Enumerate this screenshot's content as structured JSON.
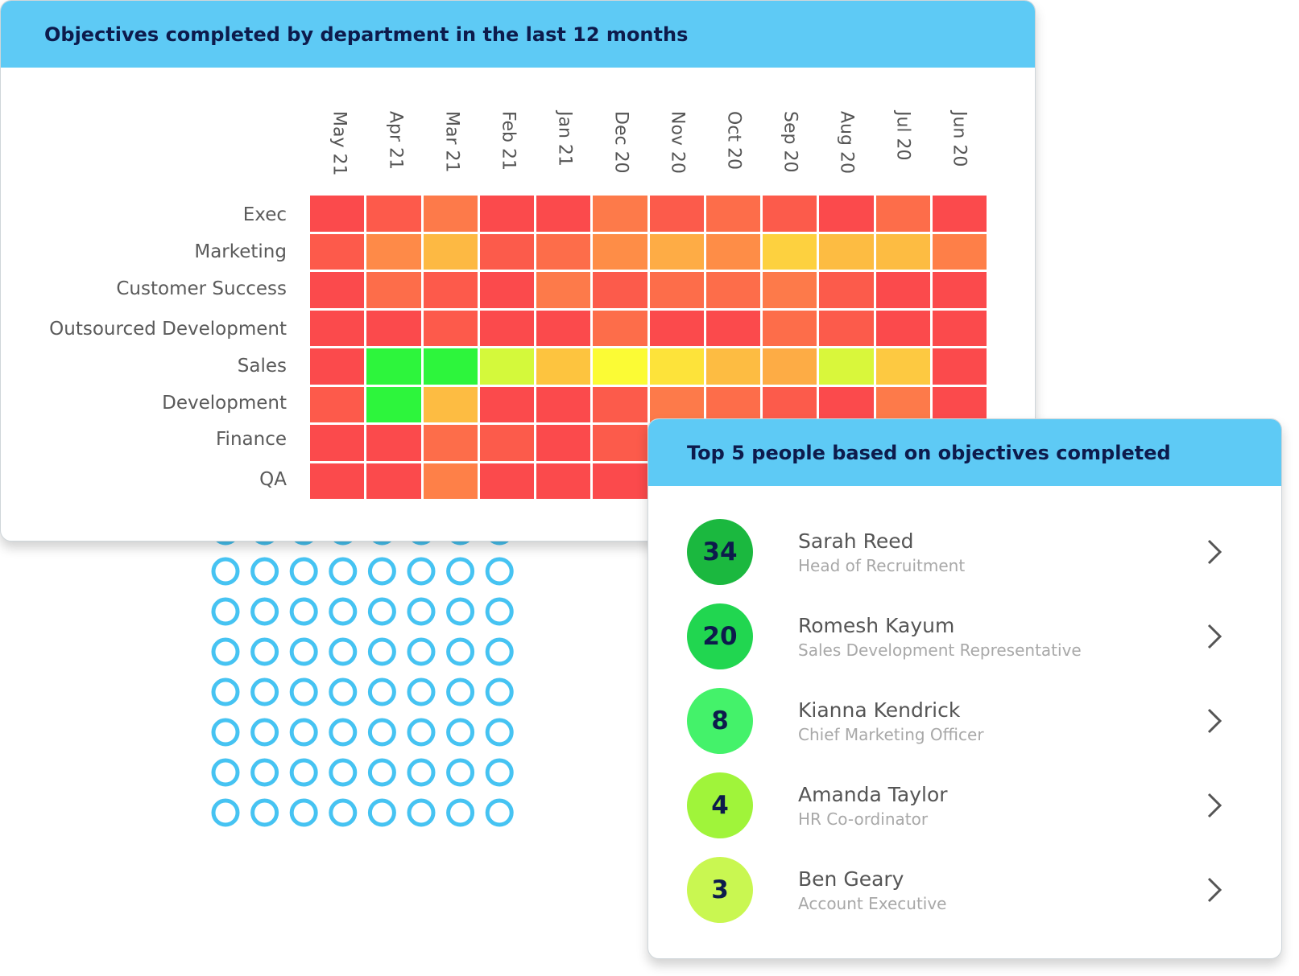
{
  "heatmap": {
    "title": "Objectives completed by department in the last 12 months",
    "months": [
      "May 21",
      "Apr 21",
      "Mar 21",
      "Feb 21",
      "Jan 21",
      "Dec 20",
      "Nov 20",
      "Oct 20",
      "Sep 20",
      "Aug 20",
      "Jul 20",
      "Jun 20"
    ],
    "departments": [
      "Exec",
      "Marketing",
      "Customer Success",
      "Outsourced Development",
      "Sales",
      "Development",
      "Finance",
      "QA"
    ],
    "cell_colors": [
      [
        "#fb4a4c",
        "#fd5a4b",
        "#fd7a4a",
        "#fb4a4c",
        "#fb4a4c",
        "#fd7a4a",
        "#fc5b4b",
        "#fd6d4a",
        "#fc5b4b",
        "#fb4a4c",
        "#fd6d4a",
        "#fb4a4c"
      ],
      [
        "#fd5a4b",
        "#fe8a48",
        "#fdb943",
        "#fc5b4b",
        "#fd6d4a",
        "#fe8d47",
        "#feac45",
        "#fe8d47",
        "#fdd13f",
        "#fdbc42",
        "#fdbc42",
        "#fe7f48"
      ],
      [
        "#fb4a4c",
        "#fd6d4a",
        "#fd5a4b",
        "#fb4a4c",
        "#fd7a4a",
        "#fc5b4b",
        "#fd6d4a",
        "#fd6d4a",
        "#fd7a4a",
        "#fc5b4b",
        "#fb4a4c",
        "#fb4a4c"
      ],
      [
        "#fb4a4c",
        "#fb4a4c",
        "#fd5a4b",
        "#fb4a4c",
        "#fb4a4c",
        "#fd6d4a",
        "#fb4a4c",
        "#fb4a4c",
        "#fd6d4a",
        "#fc5b4b",
        "#fb4a4c",
        "#fb4a4c"
      ],
      [
        "#fb4a4c",
        "#2df53c",
        "#2df53c",
        "#d4f93b",
        "#fdc43f",
        "#fbfb35",
        "#fde33a",
        "#fdbc42",
        "#fdac45",
        "#d9f73b",
        "#fdc941",
        "#fb4a4c"
      ],
      [
        "#fd5a4b",
        "#2df53c",
        "#fdbc42",
        "#fb4a4c",
        "#fb4a4c",
        "#fc5b4b",
        "#fd7a4a",
        "#fd6d4a",
        "#fc5b4b",
        "#fb4a4c",
        "#fd7a4a",
        "#fb4a4c"
      ],
      [
        "#fb4a4c",
        "#fb4a4c",
        "#fd6d4a",
        "#fc5b4b",
        "#fb4a4c",
        "#fc5b4b",
        "#fc5b4b",
        "#fc5b4b",
        "#fc5b4b",
        "#fc5b4b",
        "#fc5b4b",
        "#fc5b4b"
      ],
      [
        "#fb4a4c",
        "#fb4a4c",
        "#fe8048",
        "#fb4a4c",
        "#fb4a4c",
        "#fb4a4c",
        "#fb4a4c",
        "#fb4a4c",
        "#fb4a4c",
        "#fb4a4c",
        "#fb4a4c",
        "#fb4a4c"
      ]
    ]
  },
  "top_people": {
    "title": "Top 5 people based on objectives completed",
    "people": [
      {
        "score": "34",
        "name": "Sarah Reed",
        "role": "Head of Recruitment",
        "badge_color": "#1bb83f"
      },
      {
        "score": "20",
        "name": "Romesh Kayum",
        "role": "Sales Development Representative",
        "badge_color": "#21d650"
      },
      {
        "score": "8",
        "name": "Kianna Kendrick",
        "role": "Chief Marketing Officer",
        "badge_color": "#44f26a"
      },
      {
        "score": "4",
        "name": "Amanda Taylor",
        "role": "HR Co-ordinator",
        "badge_color": "#a0f43a"
      },
      {
        "score": "3",
        "name": "Ben Geary",
        "role": "Account Executive",
        "badge_color": "#c9f751"
      }
    ]
  },
  "colors": {
    "header_bg": "#5ecaf5",
    "header_text": "#0d1b4c",
    "dot_pattern": "#46c3f2"
  }
}
